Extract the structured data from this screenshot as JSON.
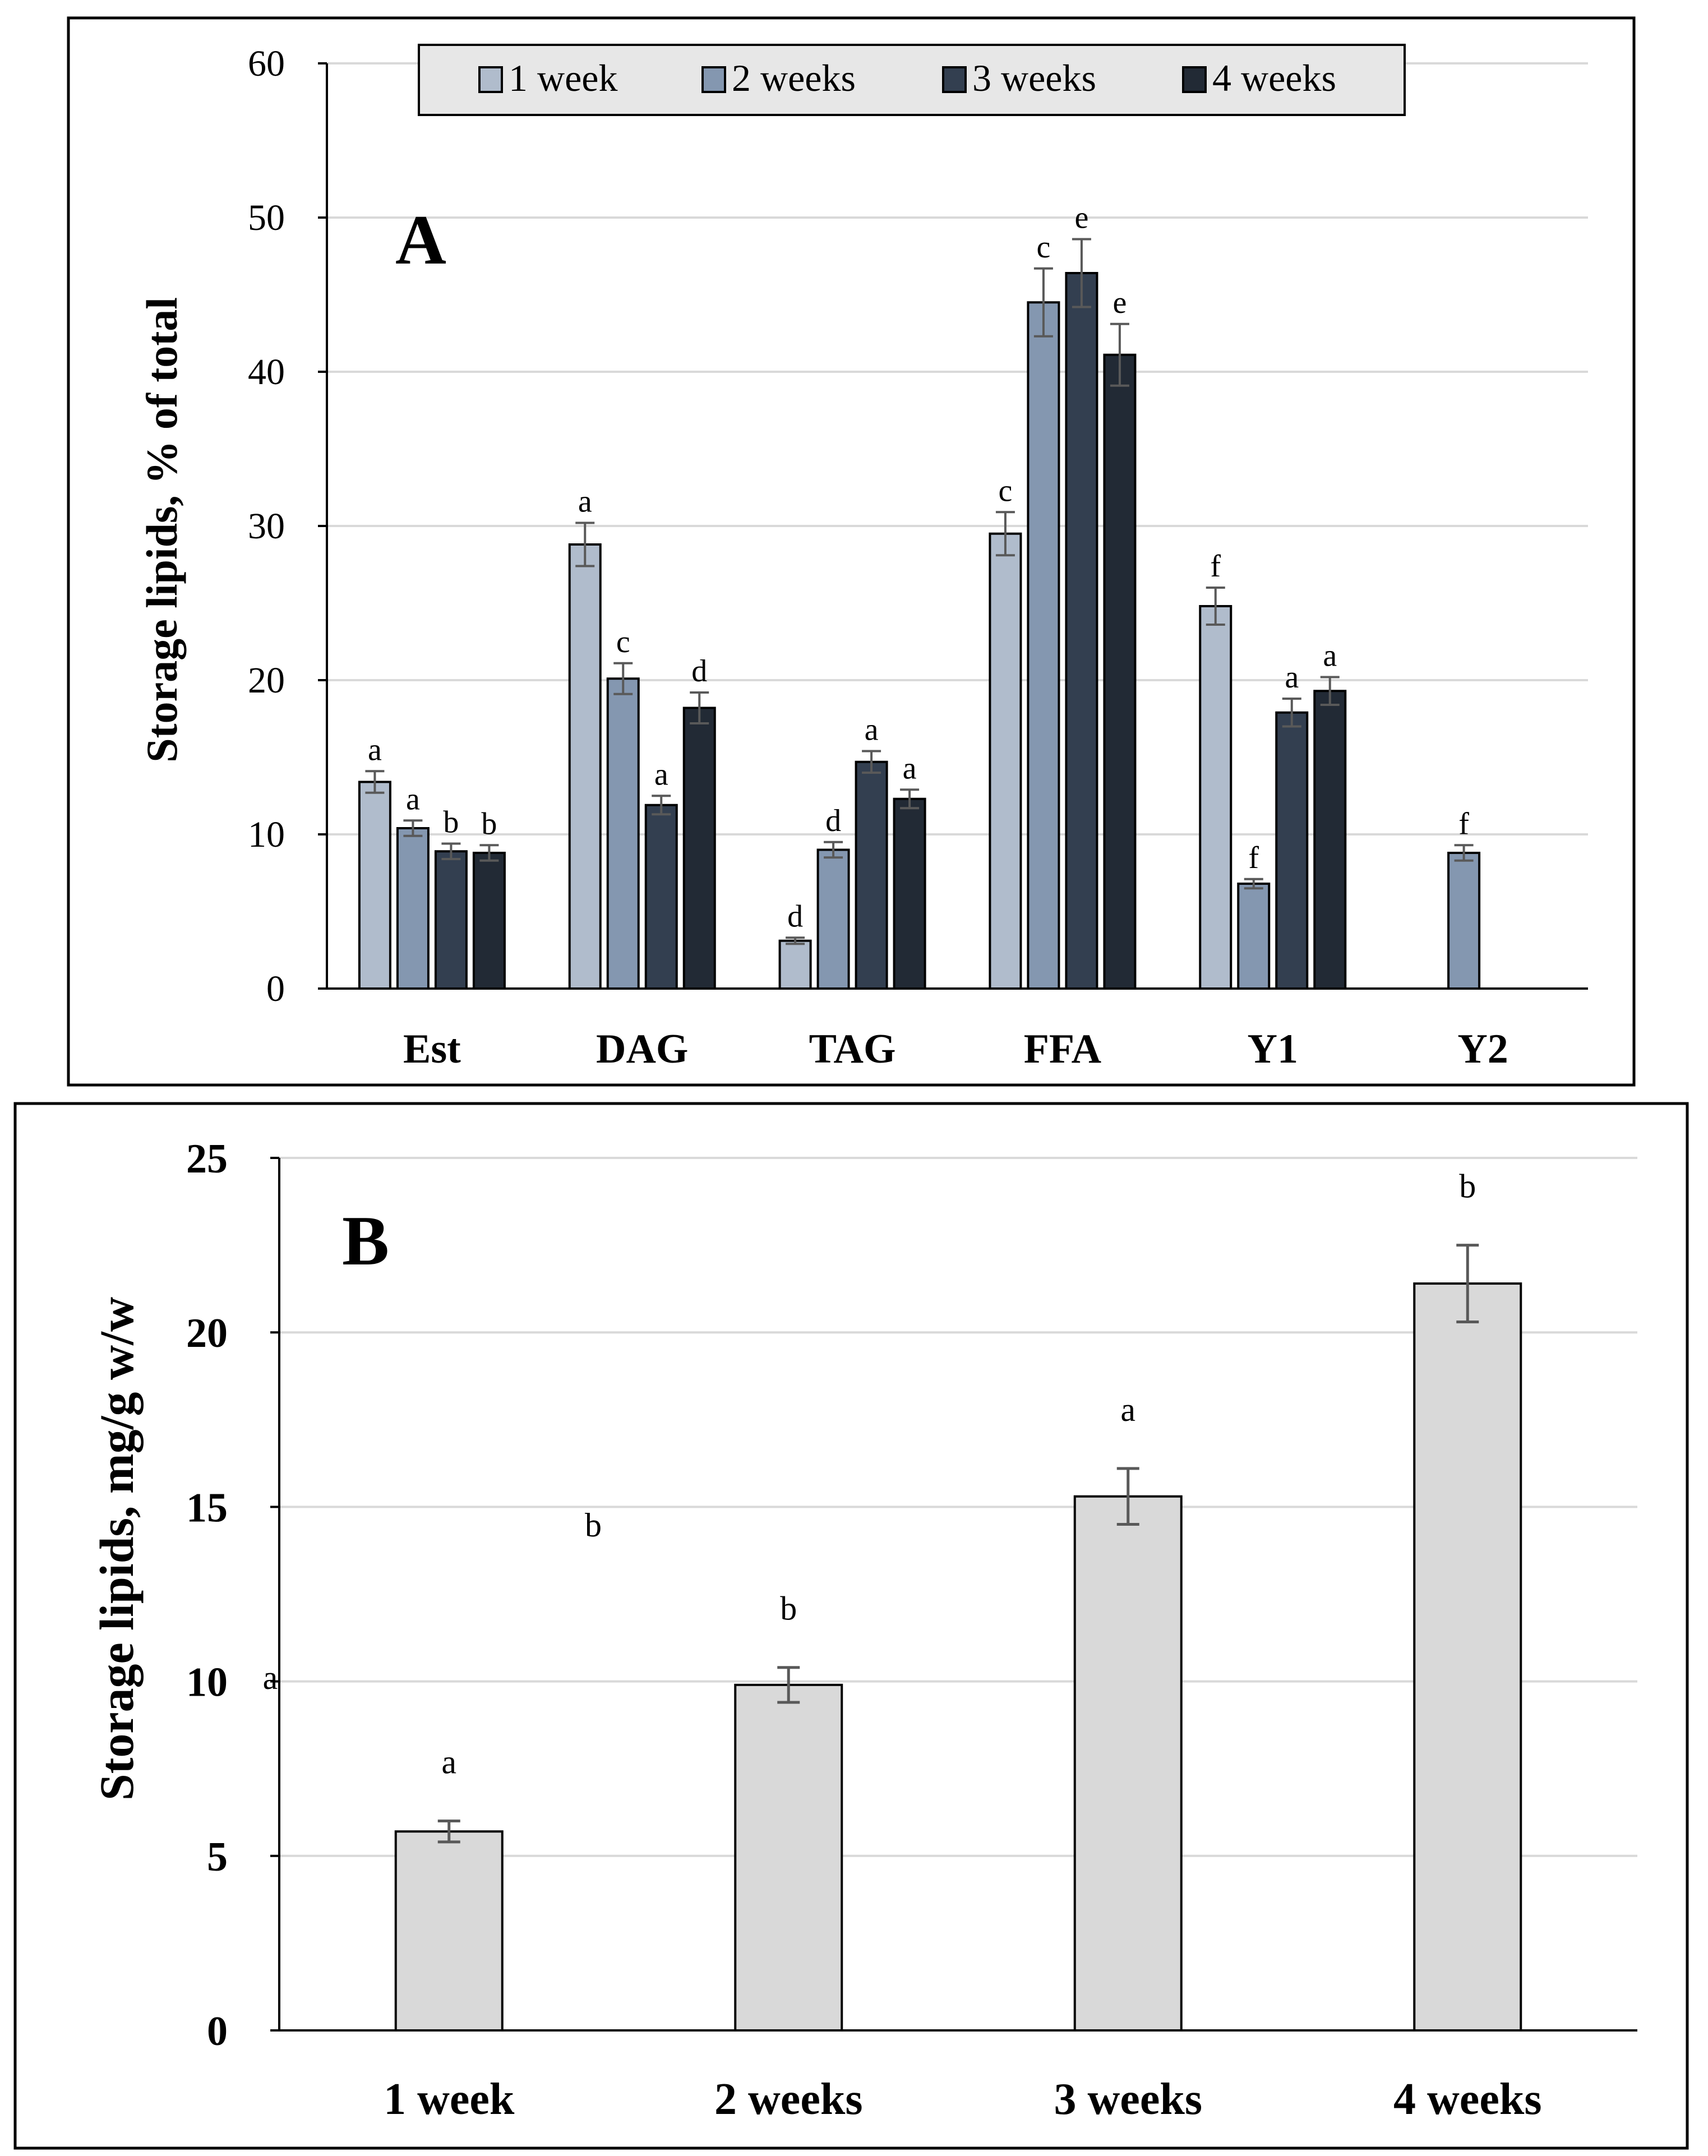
{
  "chart_data": [
    {
      "panel": "A",
      "type": "bar",
      "ylabel": "Storage lipids, % of total",
      "xlabel": "",
      "ylim": [
        0,
        60
      ],
      "yticks": [
        0,
        10,
        20,
        30,
        40,
        50,
        60
      ],
      "grid": true,
      "legend_position": "top",
      "categories": [
        "Est",
        "DAG",
        "TAG",
        "FFA",
        "Y1",
        "Y2"
      ],
      "series": [
        {
          "name": "1 week",
          "color": "#b0bccc",
          "values": [
            13.4,
            28.8,
            3.1,
            29.5,
            24.8,
            null
          ],
          "errors": [
            0.7,
            1.4,
            0.2,
            1.4,
            1.2,
            null
          ],
          "letters": [
            "a",
            "a",
            "d",
            "c",
            "f",
            ""
          ]
        },
        {
          "name": "2 weeks",
          "color": "#8497b0",
          "values": [
            10.4,
            20.1,
            9.0,
            44.5,
            6.8,
            8.8
          ],
          "errors": [
            0.5,
            1.0,
            0.5,
            2.2,
            0.3,
            0.5
          ],
          "letters": [
            "a",
            "c",
            "d",
            "c",
            "f",
            "f"
          ]
        },
        {
          "name": "3 weeks",
          "color": "#333f50",
          "values": [
            8.9,
            11.9,
            14.7,
            46.4,
            17.9,
            null
          ],
          "errors": [
            0.5,
            0.6,
            0.7,
            2.2,
            0.9,
            null
          ],
          "letters": [
            "b",
            "a",
            "a",
            "e",
            "a",
            ""
          ]
        },
        {
          "name": "4 weeks",
          "color": "#222a35",
          "values": [
            8.8,
            18.2,
            12.3,
            41.1,
            19.3,
            null
          ],
          "errors": [
            0.5,
            1.0,
            0.6,
            2.0,
            0.9,
            null
          ],
          "letters": [
            "b",
            "d",
            "a",
            "e",
            "a",
            ""
          ]
        }
      ]
    },
    {
      "panel": "B",
      "type": "bar",
      "ylabel": "Storage lipids, mg/g w/w",
      "xlabel": "",
      "ylim": [
        0,
        25
      ],
      "yticks": [
        0,
        5,
        10,
        15,
        20,
        25
      ],
      "grid": true,
      "categories": [
        "1 week",
        "2 weeks",
        "3 weeks",
        "4 weeks"
      ],
      "color": "#d9d9d9",
      "values": [
        5.7,
        9.9,
        15.3,
        21.4
      ],
      "errors": [
        0.3,
        0.5,
        0.8,
        1.1
      ],
      "letters": [
        "a",
        "b",
        "a",
        "b"
      ],
      "stray_letters": [
        "b",
        "a"
      ]
    }
  ]
}
